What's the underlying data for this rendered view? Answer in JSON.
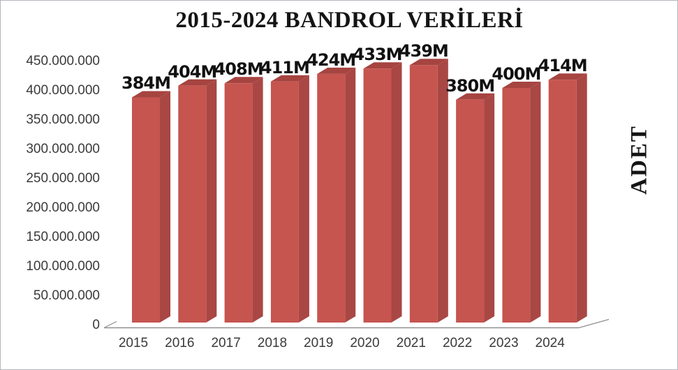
{
  "title": "2015-2024 BANDROL VERİLERİ",
  "axis": {
    "y_tick_labels": [
      "450.000.000",
      "400.000.000",
      "350.000.000",
      "300.000.000",
      "250.000.000",
      "200.000.000",
      "150.000.000",
      "100.000.000",
      "50.000.000",
      "0"
    ],
    "y_tick_values_m": [
      450,
      400,
      350,
      300,
      250,
      200,
      150,
      100,
      50,
      0
    ]
  },
  "chart_data": {
    "type": "bar",
    "style": "3d-column",
    "title": "2015-2024 BANDROL VERİLERİ",
    "categories": [
      "2015",
      "2016",
      "2017",
      "2018",
      "2019",
      "2020",
      "2021",
      "2022",
      "2023",
      "2024"
    ],
    "values": [
      384000000,
      404000000,
      408000000,
      411000000,
      424000000,
      433000000,
      439000000,
      380000000,
      400000000,
      414000000
    ],
    "values_m": [
      384,
      404,
      408,
      411,
      424,
      433,
      439,
      380,
      400,
      414
    ],
    "data_labels": [
      "384M",
      "404M",
      "408M",
      "411M",
      "424M",
      "433M",
      "439M",
      "380M",
      "400M",
      "414M"
    ],
    "ylabel_right": "ADET",
    "ylim": [
      0,
      450000000
    ],
    "y_tick_step": 50000000,
    "grid": false,
    "legend": "none",
    "colors": {
      "bar_front": "#C6544F",
      "bar_side": "#A94744",
      "bar_top": "#A64440",
      "floor_line": "#8f8f8f",
      "axis_text": "#3a3a3a",
      "title_text": "#141414"
    }
  }
}
